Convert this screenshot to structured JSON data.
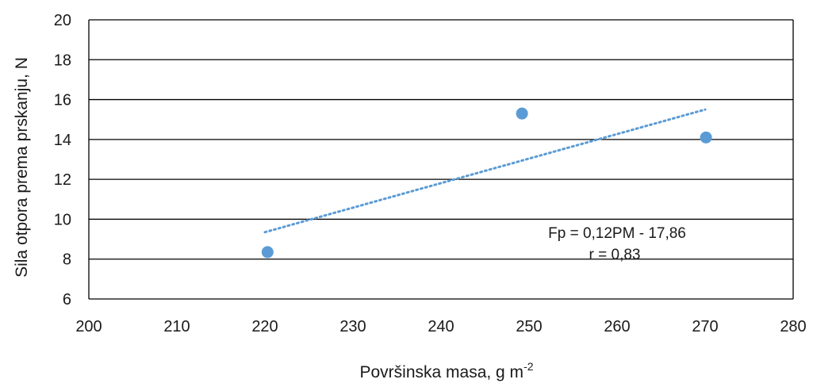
{
  "chart_data": {
    "type": "scatter",
    "xlabel": "Površinska masa, g m",
    "xlabel_sup": "-2",
    "ylabel": "Sila otpora prema prskanju, N",
    "xlim": [
      200,
      280
    ],
    "ylim": [
      6,
      20
    ],
    "x_ticks": [
      "200",
      "210",
      "220",
      "230",
      "240",
      "250",
      "260",
      "270",
      "280"
    ],
    "y_ticks": [
      "6",
      "8",
      "10",
      "12",
      "14",
      "16",
      "18",
      "20"
    ],
    "grid": "horizontal",
    "series": [
      {
        "x": [
          220.3,
          249.2,
          270.1
        ],
        "y": [
          8.35,
          15.3,
          14.1
        ],
        "color": "#5b9bd5"
      }
    ],
    "trendline": {
      "style": "dotted",
      "color": "#5b9bd5",
      "x": [
        220,
        270
      ],
      "y": [
        9.35,
        15.5
      ]
    },
    "annotations": {
      "equation": "Fp = 0,12PM - 17,86",
      "r": "r = 0,83"
    }
  }
}
